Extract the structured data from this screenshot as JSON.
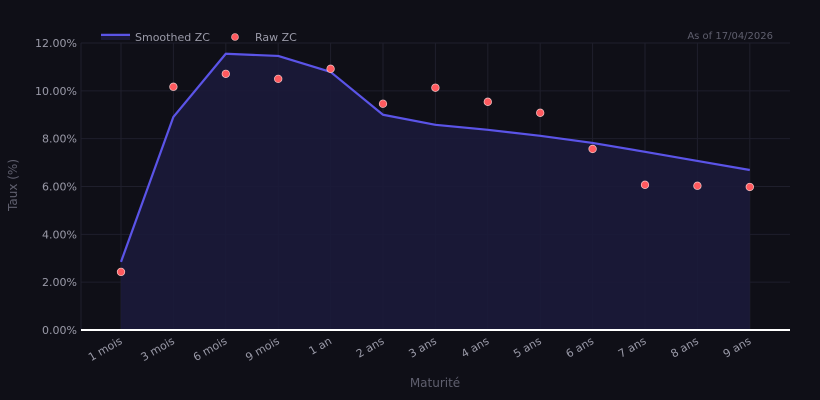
{
  "header": {
    "as_of": "As of 17/04/2026"
  },
  "legend": {
    "items": [
      {
        "label": "Smoothed ZC",
        "kind": "line",
        "color": "#5b54e8"
      },
      {
        "label": "Raw ZC",
        "kind": "marker",
        "color": "#ff5a5f"
      }
    ]
  },
  "colors": {
    "background": "#0f0f17",
    "grid": "#1f1f2c",
    "area_fill": "#1b1a3a",
    "line": "#5b54e8",
    "marker": "#ff5a5f",
    "marker_edge": "#f3c6c6",
    "baseline": "#ffffff",
    "tick_text": "#9a9aa8",
    "axis_title": "#5f5f6e"
  },
  "chart_data": {
    "type": "line",
    "title": "",
    "xlabel": "Maturité",
    "ylabel": "Taux (%)",
    "ylim": [
      0,
      12
    ],
    "yticks": [
      "0.00%",
      "2.00%",
      "4.00%",
      "6.00%",
      "8.00%",
      "10.00%",
      "12.00%"
    ],
    "grid": true,
    "legend_position": "top-left",
    "annotation": "As of 17/04/2026",
    "categories": [
      "1 mois",
      "3 mois",
      "6 mois",
      "9 mois",
      "1 an",
      "2 ans",
      "3 ans",
      "4 ans",
      "5 ans",
      "6 ans",
      "7 ans",
      "8 ans",
      "9 ans"
    ],
    "series": [
      {
        "name": "Smoothed ZC",
        "type": "line-area",
        "values": [
          2.85,
          8.91,
          11.55,
          11.46,
          10.79,
          9.0,
          8.58,
          8.37,
          8.12,
          7.82,
          7.45,
          7.07,
          6.69
        ]
      },
      {
        "name": "Raw ZC",
        "type": "scatter",
        "values": [
          2.43,
          10.17,
          10.71,
          10.5,
          10.92,
          9.46,
          10.13,
          9.54,
          9.08,
          7.57,
          6.07,
          6.03,
          5.98
        ]
      }
    ]
  }
}
